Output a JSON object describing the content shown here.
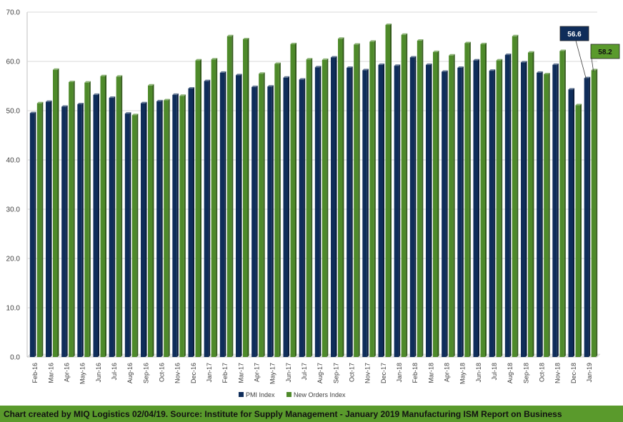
{
  "chart_data": {
    "type": "bar",
    "title": "",
    "xlabel": "",
    "ylabel": "",
    "ylim": [
      0,
      70
    ],
    "ytick_step": 10,
    "ytick_labels": [
      "0.0",
      "10.0",
      "20.0",
      "30.0",
      "40.0",
      "50.0",
      "60.0",
      "70.0"
    ],
    "grid": true,
    "legend_position": "bottom",
    "categories": [
      "Feb-16",
      "Mar-16",
      "Apr-16",
      "May-16",
      "Jun-16",
      "Jul-16",
      "Aug-16",
      "Sep-16",
      "Oct-16",
      "Nov-16",
      "Dec-16",
      "Jan-17",
      "Feb-17",
      "Mar-17",
      "Apr-17",
      "May-17",
      "Jun-17",
      "Jul-17",
      "Aug-17",
      "Sep-17",
      "Oct-17",
      "Nov-17",
      "Dec-17",
      "Jan-18",
      "Feb-18",
      "Mar-18",
      "Apr-18",
      "May-18",
      "Jun-18",
      "Jul-18",
      "Aug-18",
      "Sep-18",
      "Oct-18",
      "Nov-18",
      "Dec-18",
      "Jan-19"
    ],
    "series": [
      {
        "name": "PMI Index",
        "color": "#0f2d5a",
        "values": [
          49.5,
          51.8,
          50.8,
          51.3,
          53.2,
          52.6,
          49.4,
          51.5,
          51.9,
          53.2,
          54.5,
          56.0,
          57.7,
          57.2,
          54.8,
          54.9,
          56.7,
          56.3,
          58.8,
          60.8,
          58.7,
          58.2,
          59.3,
          59.1,
          60.8,
          59.3,
          57.9,
          58.7,
          60.2,
          58.1,
          61.3,
          59.8,
          57.7,
          59.3,
          54.3,
          56.6
        ]
      },
      {
        "name": "New Orders Index",
        "color": "#4e8a2a",
        "values": [
          51.5,
          58.3,
          55.8,
          55.7,
          57.0,
          56.9,
          49.1,
          55.1,
          52.1,
          53.0,
          60.2,
          60.4,
          65.1,
          64.5,
          57.5,
          59.5,
          63.5,
          60.4,
          60.3,
          64.6,
          63.4,
          64.0,
          67.4,
          65.4,
          64.2,
          61.9,
          61.2,
          63.7,
          63.5,
          60.2,
          65.1,
          61.8,
          57.4,
          62.1,
          51.1,
          58.2
        ]
      }
    ],
    "callouts": [
      {
        "series": "PMI Index",
        "category": "Jan-19",
        "text": "56.6",
        "bg": "#0f2d5a",
        "fg": "#ffffff"
      },
      {
        "series": "New Orders Index",
        "category": "Jan-19",
        "text": "58.2",
        "bg": "#5a9a2c",
        "fg": "#111111"
      }
    ]
  },
  "footer": {
    "text": "Chart created by MIQ Logistics 02/04/19. Source: Institute for Supply Management - January 2019 Manufacturing ISM Report on Business"
  }
}
